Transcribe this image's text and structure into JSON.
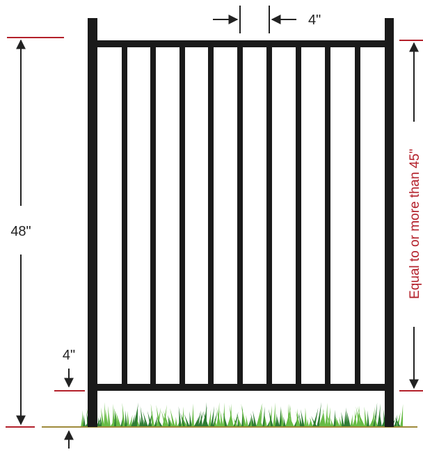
{
  "labels": {
    "total_height": "48\"",
    "picket_spacing": "4\"",
    "bottom_gap": "4\"",
    "rail_span": "Equal to or more than 45\""
  },
  "colors": {
    "fence": "#1a1a1a",
    "dimension_line": "#222222",
    "reference_line": "#b3202a",
    "grass_dark": "#2e7d32",
    "grass_light": "#66bb44",
    "ground": "#9e8a3a"
  }
}
